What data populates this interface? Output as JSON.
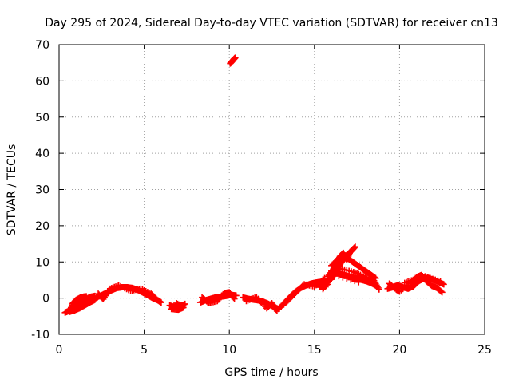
{
  "chart_data": {
    "type": "scatter",
    "title": "Day 295 of 2024, Sidereal Day-to-day VTEC variation (SDTVAR) for receiver cn13",
    "xlabel": "GPS time / hours",
    "ylabel": "SDTVAR / TECUs",
    "xlim": [
      0,
      25
    ],
    "ylim": [
      -10,
      70
    ],
    "xticks": [
      0,
      5,
      10,
      15,
      20,
      25
    ],
    "yticks": [
      -10,
      0,
      10,
      20,
      30,
      40,
      50,
      60,
      70
    ],
    "grid": true,
    "marker": "plus",
    "color": "#ff0000",
    "series": [
      {
        "name": "cn13",
        "tracks": [
          [
            [
              0.35,
              -4.0
            ],
            [
              0.6,
              -3.5
            ],
            [
              0.9,
              -2.5
            ],
            [
              1.2,
              -1.5
            ],
            [
              1.5,
              -0.5
            ],
            [
              1.8,
              0.3
            ],
            [
              2.1,
              0.6
            ],
            [
              2.1,
              -0.5
            ],
            [
              1.8,
              -1.2
            ],
            [
              1.5,
              -2.0
            ],
            [
              1.2,
              -2.8
            ],
            [
              0.9,
              -3.4
            ],
            [
              0.6,
              -3.8
            ],
            [
              0.8,
              -1.5
            ],
            [
              1.0,
              -0.5
            ],
            [
              1.3,
              0.3
            ],
            [
              1.6,
              0.5
            ]
          ],
          [
            [
              2.2,
              0.2
            ],
            [
              2.5,
              0.8
            ],
            [
              2.8,
              1.5
            ],
            [
              3.1,
              2.2
            ],
            [
              3.4,
              2.8
            ],
            [
              3.7,
              3.0
            ],
            [
              4.0,
              3.0
            ],
            [
              4.3,
              2.8
            ],
            [
              4.6,
              2.3
            ],
            [
              4.9,
              1.6
            ],
            [
              5.2,
              0.8
            ],
            [
              5.5,
              0.0
            ],
            [
              5.8,
              -0.6
            ],
            [
              6.0,
              -1.2
            ],
            [
              2.3,
              1.2
            ],
            [
              2.6,
              -0.3
            ],
            [
              3.0,
              2.6
            ],
            [
              3.5,
              3.5
            ],
            [
              4.2,
              2.0
            ],
            [
              4.8,
              2.6
            ],
            [
              5.4,
              1.2
            ],
            [
              5.7,
              -0.2
            ]
          ],
          [
            [
              6.5,
              -2.0
            ],
            [
              6.8,
              -2.5
            ],
            [
              7.1,
              -2.3
            ],
            [
              7.4,
              -1.6
            ],
            [
              6.6,
              -3.0
            ],
            [
              7.0,
              -3.2
            ],
            [
              7.3,
              -2.6
            ],
            [
              6.9,
              -1.4
            ]
          ],
          [
            [
              8.3,
              -1.2
            ],
            [
              8.6,
              -0.6
            ],
            [
              8.9,
              -0.2
            ],
            [
              9.2,
              0.2
            ],
            [
              9.5,
              0.4
            ],
            [
              9.8,
              0.6
            ],
            [
              10.1,
              0.9
            ],
            [
              10.4,
              0.7
            ],
            [
              8.4,
              0.2
            ],
            [
              8.8,
              -1.4
            ],
            [
              9.3,
              -0.8
            ],
            [
              9.7,
              1.4
            ],
            [
              10.0,
              1.6
            ],
            [
              10.3,
              -0.2
            ]
          ],
          [
            [
              10.05,
              64.8
            ],
            [
              10.15,
              65.3
            ],
            [
              10.25,
              65.9
            ],
            [
              10.35,
              66.4
            ]
          ],
          [
            [
              10.8,
              0.2
            ],
            [
              11.1,
              -0.2
            ],
            [
              11.4,
              -0.4
            ],
            [
              11.7,
              -0.6
            ],
            [
              12.0,
              -1.0
            ],
            [
              12.3,
              -1.6
            ],
            [
              12.6,
              -2.4
            ],
            [
              12.9,
              -3.0
            ],
            [
              11.0,
              -0.8
            ],
            [
              11.6,
              0.3
            ],
            [
              12.2,
              -2.8
            ],
            [
              12.5,
              -1.4
            ],
            [
              12.8,
              -3.6
            ]
          ],
          [
            [
              13.0,
              -2.5
            ],
            [
              13.3,
              -1.0
            ],
            [
              13.6,
              0.5
            ],
            [
              13.9,
              1.8
            ],
            [
              14.2,
              2.8
            ],
            [
              14.5,
              3.5
            ],
            [
              14.8,
              4.0
            ],
            [
              15.1,
              4.3
            ],
            [
              15.4,
              4.5
            ],
            [
              15.7,
              4.8
            ],
            [
              16.0,
              5.2
            ],
            [
              13.2,
              -1.8
            ],
            [
              13.8,
              1.0
            ],
            [
              14.4,
              3.8
            ],
            [
              15.0,
              3.2
            ],
            [
              15.6,
              5.5
            ],
            [
              15.3,
              3.0
            ],
            [
              15.8,
              3.8
            ]
          ],
          [
            [
              15.5,
              2.5
            ],
            [
              15.7,
              4.0
            ],
            [
              16.0,
              5.5
            ],
            [
              16.2,
              7.0
            ],
            [
              16.4,
              8.5
            ],
            [
              16.6,
              10.0
            ],
            [
              16.8,
              11.2
            ],
            [
              17.0,
              12.2
            ],
            [
              17.2,
              13.2
            ],
            [
              17.4,
              14.2
            ],
            [
              15.8,
              6.0
            ],
            [
              16.1,
              8.0
            ],
            [
              16.3,
              10.0
            ],
            [
              16.5,
              11.5
            ],
            [
              16.7,
              12.5
            ],
            [
              16.9,
              10.5
            ],
            [
              17.1,
              12.8
            ],
            [
              16.0,
              9.0
            ],
            [
              16.4,
              10.8
            ]
          ],
          [
            [
              16.0,
              7.5
            ],
            [
              16.3,
              7.0
            ],
            [
              16.6,
              6.6
            ],
            [
              16.9,
              6.2
            ],
            [
              17.2,
              5.8
            ],
            [
              17.5,
              5.4
            ],
            [
              17.8,
              5.0
            ],
            [
              18.1,
              4.6
            ],
            [
              18.4,
              4.0
            ],
            [
              18.7,
              3.2
            ],
            [
              16.8,
              11.5
            ],
            [
              17.1,
              10.5
            ],
            [
              17.4,
              9.5
            ],
            [
              17.7,
              8.5
            ],
            [
              18.0,
              7.5
            ],
            [
              18.3,
              6.5
            ],
            [
              18.6,
              5.5
            ],
            [
              16.5,
              8.2
            ],
            [
              17.3,
              7.2
            ],
            [
              17.9,
              6.0
            ],
            [
              18.5,
              4.8
            ],
            [
              18.8,
              2.4
            ],
            [
              16.2,
              6.4
            ],
            [
              17.6,
              4.4
            ]
          ],
          [
            [
              19.3,
              2.6
            ],
            [
              19.6,
              3.0
            ],
            [
              19.9,
              3.6
            ],
            [
              20.2,
              3.0
            ],
            [
              20.5,
              2.6
            ],
            [
              20.8,
              3.2
            ],
            [
              21.1,
              4.6
            ],
            [
              21.4,
              5.4
            ],
            [
              21.7,
              5.6
            ],
            [
              22.0,
              5.0
            ],
            [
              22.3,
              4.4
            ],
            [
              22.6,
              3.8
            ],
            [
              19.4,
              4.0
            ],
            [
              19.8,
              2.4
            ],
            [
              20.0,
              1.8
            ],
            [
              20.6,
              4.0
            ],
            [
              21.0,
              5.8
            ],
            [
              21.3,
              6.4
            ],
            [
              21.6,
              4.6
            ],
            [
              21.9,
              3.4
            ],
            [
              22.2,
              2.8
            ],
            [
              22.5,
              1.6
            ],
            [
              20.3,
              4.2
            ],
            [
              20.9,
              5.2
            ],
            [
              21.5,
              6.0
            ],
            [
              22.4,
              4.6
            ]
          ]
        ]
      }
    ]
  }
}
